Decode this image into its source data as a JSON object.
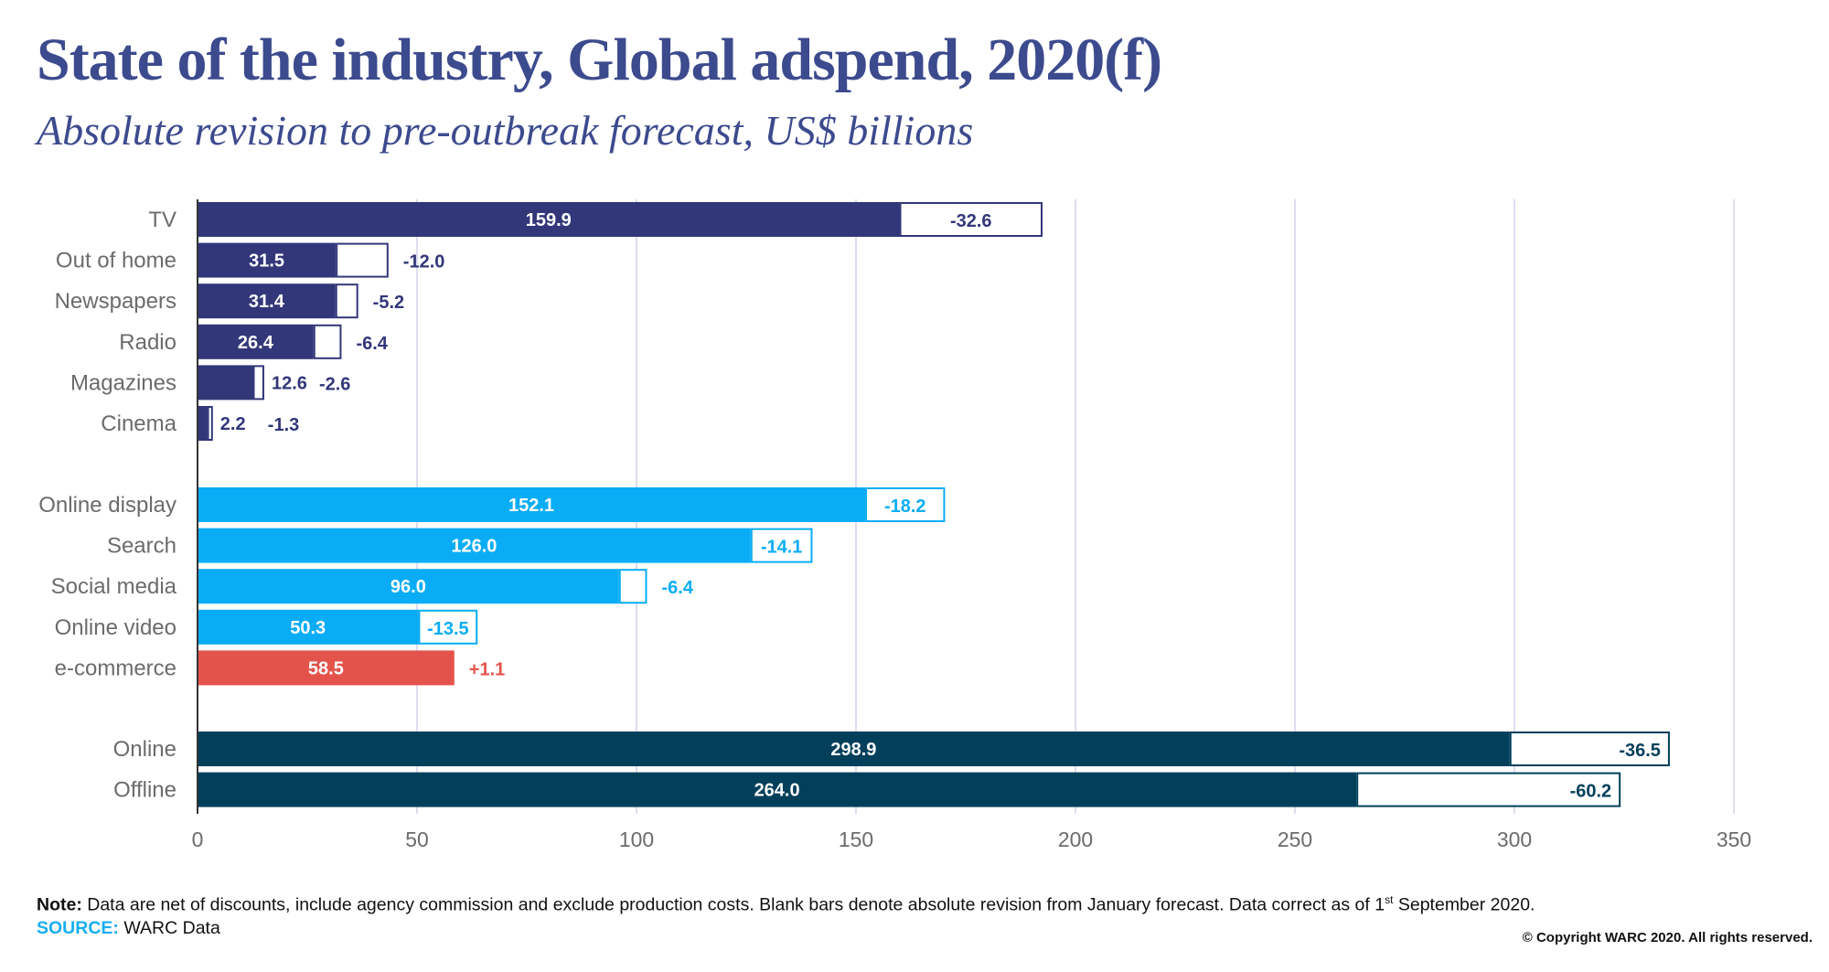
{
  "header": {
    "title": "State of the industry, Global adspend, 2020(f)",
    "subtitle": "Absolute revision to pre-outbreak forecast, US$ billions"
  },
  "footer": {
    "note_label": "Note:",
    "note_text": " Data are net of discounts, include agency commission and exclude production costs. Blank bars denote absolute revision from January forecast. Data correct as of 1",
    "note_sup": "st",
    "note_end": " September 2020.",
    "source_label": "SOURCE:",
    "source_text": " WARC Data",
    "copyright": "© Copyright WARC 2020. All rights reserved."
  },
  "colors": {
    "traditional": "#32377A",
    "digital": "#0AADF5",
    "ecommerce": "#E4534B",
    "total": "#013F5A",
    "grid": "#DCDDF0",
    "label": "#6B6B6B",
    "title": "#3C4A8E"
  },
  "chart_data": {
    "type": "bar",
    "orientation": "horizontal",
    "title": "State of the industry, Global adspend, 2020(f)",
    "subtitle": "Absolute revision to pre-outbreak forecast, US$ billions",
    "xlabel": "",
    "ylabel": "",
    "xlim": [
      0,
      350
    ],
    "xticks": [
      0,
      50,
      100,
      150,
      200,
      250,
      300,
      350
    ],
    "grid": true,
    "legend": "none",
    "groups": [
      {
        "name": "traditional",
        "items": [
          {
            "category": "TV",
            "value": 159.9,
            "value_label": "159.9",
            "revision": -32.6,
            "revision_label": "-32.6"
          },
          {
            "category": "Out of home",
            "value": 31.5,
            "value_label": "31.5",
            "revision": -12.0,
            "revision_label": "-12.0"
          },
          {
            "category": "Newspapers",
            "value": 31.4,
            "value_label": "31.4",
            "revision": -5.2,
            "revision_label": "-5.2"
          },
          {
            "category": "Radio",
            "value": 26.4,
            "value_label": "26.4",
            "revision": -6.4,
            "revision_label": "-6.4"
          },
          {
            "category": "Magazines",
            "value": 12.6,
            "value_label": "12.6",
            "revision": -2.6,
            "revision_label": "-2.6"
          },
          {
            "category": "Cinema",
            "value": 2.2,
            "value_label": "2.2",
            "revision": -1.3,
            "revision_label": "-1.3"
          }
        ]
      },
      {
        "name": "digital",
        "items": [
          {
            "category": "Online display",
            "value": 152.1,
            "value_label": "152.1",
            "revision": -18.2,
            "revision_label": "-18.2"
          },
          {
            "category": "Search",
            "value": 126.0,
            "value_label": "126.0",
            "revision": -14.1,
            "revision_label": "-14.1"
          },
          {
            "category": "Social media",
            "value": 96.0,
            "value_label": "96.0",
            "revision": -6.4,
            "revision_label": "-6.4"
          },
          {
            "category": "Online video",
            "value": 50.3,
            "value_label": "50.3",
            "revision": -13.5,
            "revision_label": "-13.5"
          },
          {
            "category": "e-commerce",
            "value": 58.5,
            "value_label": "58.5",
            "revision": 1.1,
            "revision_label": "+1.1",
            "color_key": "ecommerce"
          }
        ]
      },
      {
        "name": "total",
        "items": [
          {
            "category": "Online",
            "value": 298.9,
            "value_label": "298.9",
            "revision": -36.5,
            "revision_label": "-36.5"
          },
          {
            "category": "Offline",
            "value": 264.0,
            "value_label": "264.0",
            "revision": -60.2,
            "revision_label": "-60.2"
          }
        ]
      }
    ]
  }
}
